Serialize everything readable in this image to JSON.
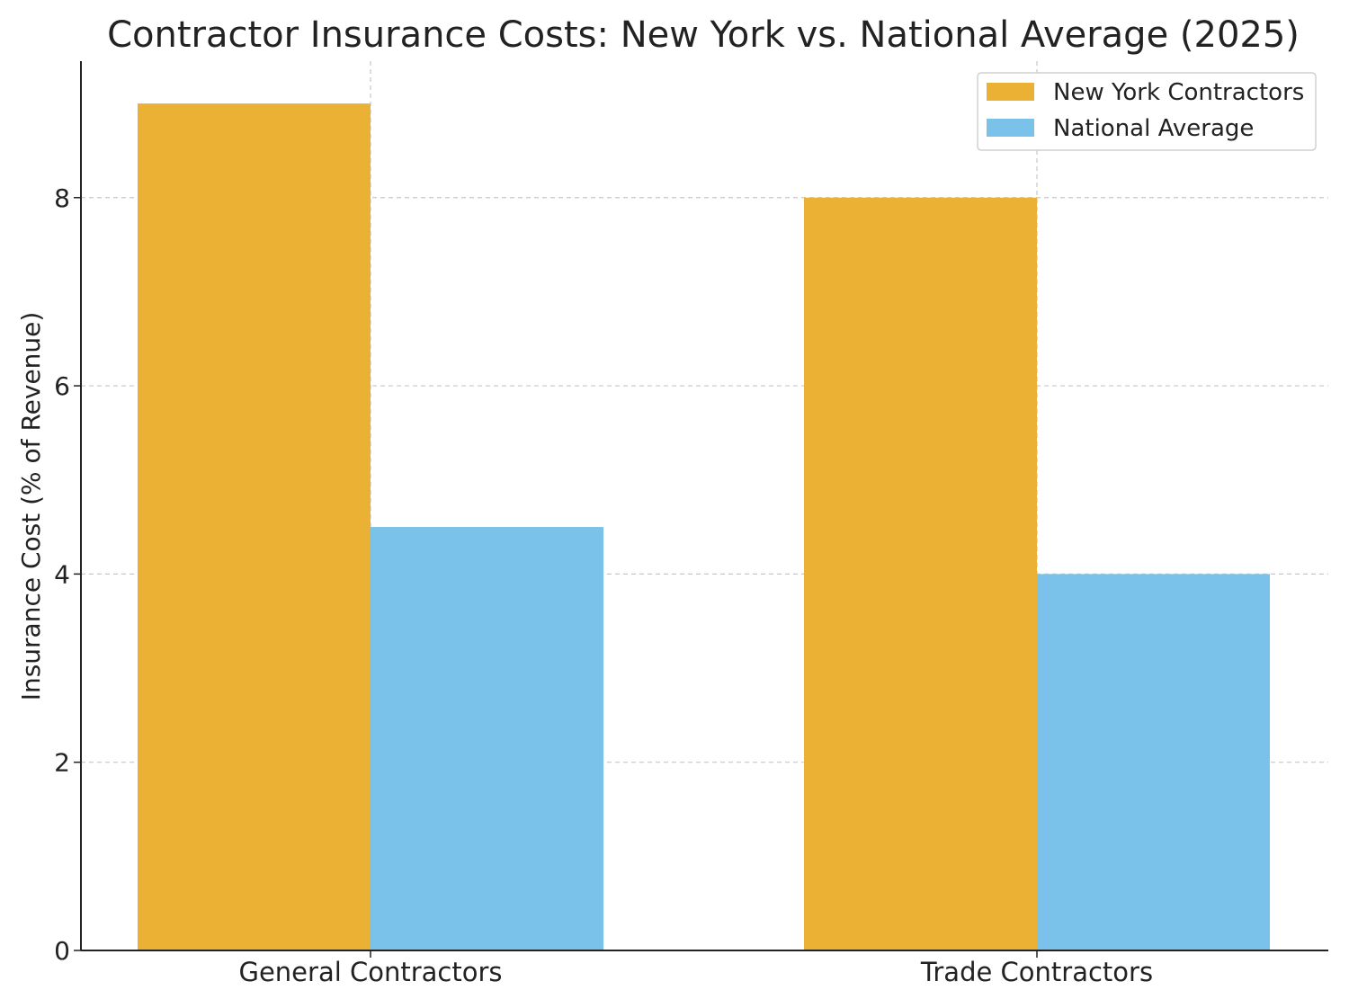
{
  "chart_data": {
    "type": "bar",
    "title": "Contractor Insurance Costs: New York vs. National Average (2025)",
    "xlabel": "",
    "ylabel": "Insurance Cost (% of Revenue)",
    "categories": [
      "General Contractors",
      "Trade Contractors"
    ],
    "series": [
      {
        "name": "New York Contractors",
        "values": [
          9.0,
          8.0
        ],
        "color": "#EAB135"
      },
      {
        "name": "National Average",
        "values": [
          4.5,
          4.0
        ],
        "color": "#7AC2E9"
      }
    ],
    "ylim": [
      0,
      9.45
    ],
    "yticks": [
      0,
      2,
      4,
      6,
      8
    ],
    "grid": true,
    "legend_position": "top-right"
  }
}
